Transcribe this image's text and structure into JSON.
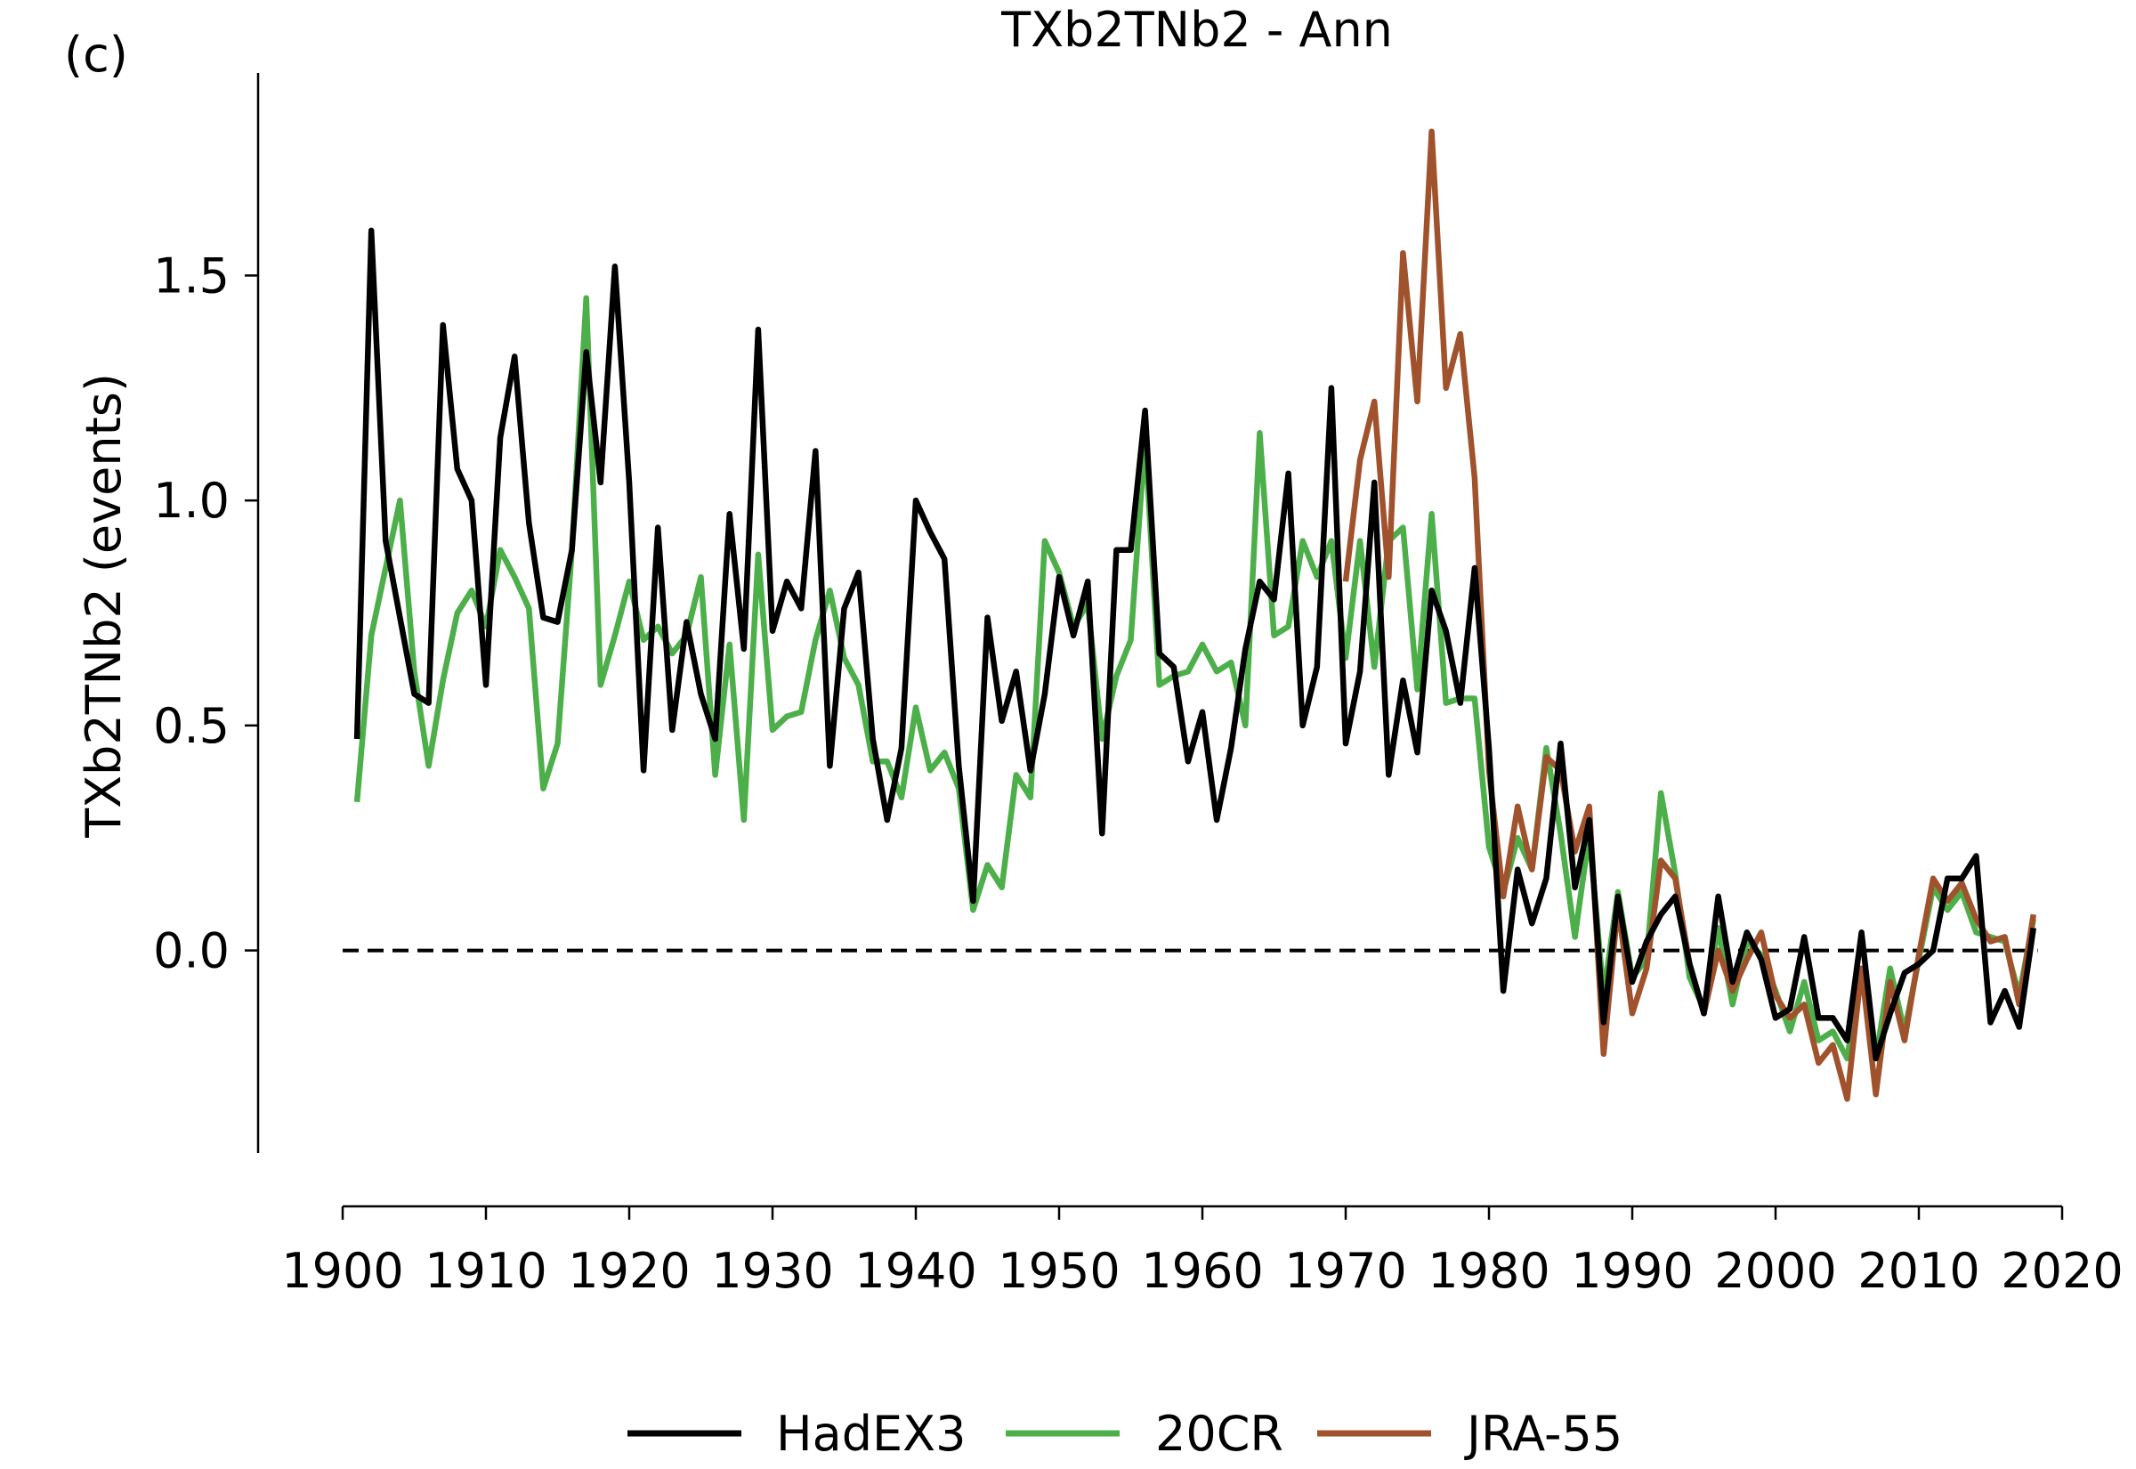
{
  "panel_label": "(c)",
  "chart_data": {
    "type": "line",
    "title": "TXb2TNb2 - Ann",
    "xlabel": "",
    "ylabel": "TXb2TNb2 (events)",
    "xlim": [
      1900,
      2020
    ],
    "ylim": [
      -0.45,
      1.95
    ],
    "xticks": [
      1900,
      1910,
      1920,
      1930,
      1940,
      1950,
      1960,
      1970,
      1980,
      1990,
      2000,
      2010,
      2020
    ],
    "xtick_labels": [
      "1900",
      "1910",
      "1920",
      "1930",
      "1940",
      "1950",
      "1960",
      "1970",
      "1980",
      "1990",
      "2000",
      "2010",
      "2020"
    ],
    "yticks": [
      0.0,
      0.5,
      1.0,
      1.5
    ],
    "ytick_labels": [
      "0.0",
      "0.5",
      "1.0",
      "1.5"
    ],
    "reference_line": {
      "y": 0.0,
      "style": "dashed",
      "color": "#000000"
    },
    "legend": {
      "position": "bottom-center"
    },
    "series": [
      {
        "name": "HadEX3",
        "color": "#000000",
        "x": [
          1901,
          1902,
          1903,
          1904,
          1905,
          1906,
          1907,
          1908,
          1909,
          1910,
          1911,
          1912,
          1913,
          1914,
          1915,
          1916,
          1917,
          1918,
          1919,
          1920,
          1921,
          1922,
          1923,
          1924,
          1925,
          1926,
          1927,
          1928,
          1929,
          1930,
          1931,
          1932,
          1933,
          1934,
          1935,
          1936,
          1937,
          1938,
          1939,
          1940,
          1941,
          1942,
          1943,
          1944,
          1945,
          1946,
          1947,
          1948,
          1949,
          1950,
          1951,
          1952,
          1953,
          1954,
          1955,
          1956,
          1957,
          1958,
          1959,
          1960,
          1961,
          1962,
          1963,
          1964,
          1965,
          1966,
          1967,
          1968,
          1969,
          1970,
          1971,
          1972,
          1973,
          1974,
          1975,
          1976,
          1977,
          1978,
          1979,
          1980,
          1981,
          1982,
          1983,
          1984,
          1985,
          1986,
          1987,
          1988,
          1989,
          1990,
          1991,
          1992,
          1993,
          1994,
          1995,
          1996,
          1997,
          1998,
          1999,
          2000,
          2001,
          2002,
          2003,
          2004,
          2005,
          2006,
          2007,
          2008,
          2009,
          2010,
          2011,
          2012,
          2013,
          2014,
          2015,
          2016,
          2017,
          2018
        ],
        "y": [
          0.47,
          1.6,
          0.91,
          0.74,
          0.57,
          0.55,
          1.39,
          1.07,
          1.0,
          0.59,
          1.14,
          1.32,
          0.95,
          0.74,
          0.73,
          0.89,
          1.33,
          1.04,
          1.52,
          1.04,
          0.4,
          0.94,
          0.49,
          0.73,
          0.57,
          0.47,
          0.97,
          0.67,
          1.38,
          0.71,
          0.82,
          0.76,
          1.11,
          0.41,
          0.76,
          0.84,
          0.47,
          0.29,
          0.45,
          1.0,
          0.93,
          0.87,
          0.41,
          0.11,
          0.74,
          0.51,
          0.62,
          0.4,
          0.57,
          0.83,
          0.7,
          0.82,
          0.26,
          0.89,
          0.89,
          1.2,
          0.66,
          0.63,
          0.42,
          0.53,
          0.29,
          0.45,
          0.67,
          0.82,
          0.78,
          1.06,
          0.5,
          0.63,
          1.25,
          0.46,
          0.62,
          1.04,
          0.39,
          0.6,
          0.44,
          0.8,
          0.71,
          0.55,
          0.85,
          0.45,
          -0.09,
          0.18,
          0.06,
          0.16,
          0.46,
          0.14,
          0.29,
          -0.16,
          0.12,
          -0.07,
          0.02,
          0.08,
          0.12,
          -0.03,
          -0.14,
          0.12,
          -0.07,
          0.04,
          -0.02,
          -0.15,
          -0.13,
          0.03,
          -0.15,
          -0.15,
          -0.2,
          0.04,
          -0.24,
          -0.14,
          -0.05,
          -0.03,
          0.0,
          0.16,
          0.16,
          0.21,
          -0.16,
          -0.09,
          -0.17,
          0.05
        ]
      },
      {
        "name": "20CR",
        "color": "#4DAF4A",
        "x": [
          1901,
          1902,
          1903,
          1904,
          1905,
          1906,
          1907,
          1908,
          1909,
          1910,
          1911,
          1912,
          1913,
          1914,
          1915,
          1916,
          1917,
          1918,
          1919,
          1920,
          1921,
          1922,
          1923,
          1924,
          1925,
          1926,
          1927,
          1928,
          1929,
          1930,
          1931,
          1932,
          1933,
          1934,
          1935,
          1936,
          1937,
          1938,
          1939,
          1940,
          1941,
          1942,
          1943,
          1944,
          1945,
          1946,
          1947,
          1948,
          1949,
          1950,
          1951,
          1952,
          1953,
          1954,
          1955,
          1956,
          1957,
          1958,
          1959,
          1960,
          1961,
          1962,
          1963,
          1964,
          1965,
          1966,
          1967,
          1968,
          1969,
          1970,
          1971,
          1972,
          1973,
          1974,
          1975,
          1976,
          1977,
          1978,
          1979,
          1980,
          1981,
          1982,
          1983,
          1984,
          1985,
          1986,
          1987,
          1988,
          1989,
          1990,
          1991,
          1992,
          1993,
          1994,
          1995,
          1996,
          1997,
          1998,
          1999,
          2000,
          2001,
          2002,
          2003,
          2004,
          2005,
          2006,
          2007,
          2008,
          2009,
          2010,
          2011,
          2012,
          2013,
          2014,
          2015,
          2016,
          2017,
          2018
        ],
        "y": [
          0.33,
          0.7,
          0.85,
          1.0,
          0.62,
          0.41,
          0.6,
          0.75,
          0.8,
          0.72,
          0.89,
          0.83,
          0.76,
          0.36,
          0.46,
          0.89,
          1.45,
          0.59,
          0.7,
          0.82,
          0.69,
          0.72,
          0.66,
          0.7,
          0.83,
          0.39,
          0.68,
          0.29,
          0.88,
          0.49,
          0.52,
          0.53,
          0.69,
          0.8,
          0.65,
          0.59,
          0.42,
          0.42,
          0.34,
          0.54,
          0.4,
          0.44,
          0.36,
          0.09,
          0.19,
          0.14,
          0.39,
          0.34,
          0.91,
          0.84,
          0.72,
          0.77,
          0.47,
          0.61,
          0.69,
          1.14,
          0.59,
          0.61,
          0.62,
          0.68,
          0.62,
          0.64,
          0.5,
          1.15,
          0.7,
          0.72,
          0.91,
          0.83,
          0.91,
          0.65,
          0.91,
          0.63,
          0.91,
          0.94,
          0.58,
          0.97,
          0.55,
          0.56,
          0.56,
          0.23,
          0.13,
          0.25,
          0.18,
          0.45,
          0.26,
          0.03,
          0.26,
          -0.1,
          0.13,
          -0.06,
          -0.02,
          0.35,
          0.17,
          -0.06,
          -0.13,
          0.05,
          -0.12,
          0.02,
          -0.01,
          -0.09,
          -0.18,
          -0.07,
          -0.2,
          -0.18,
          -0.24,
          -0.04,
          -0.24,
          -0.04,
          -0.18,
          -0.02,
          0.14,
          0.09,
          0.13,
          0.04,
          0.03,
          0.02,
          -0.1,
          0.07
        ]
      },
      {
        "name": "JRA-55",
        "color": "#A0522D",
        "x": [
          1970,
          1971,
          1972,
          1973,
          1974,
          1975,
          1976,
          1977,
          1978,
          1979,
          1980,
          1981,
          1982,
          1983,
          1984,
          1985,
          1986,
          1987,
          1988,
          1989,
          1990,
          1991,
          1992,
          1993,
          1994,
          1995,
          1996,
          1997,
          1998,
          1999,
          2000,
          2001,
          2002,
          2003,
          2004,
          2005,
          2006,
          2007,
          2008,
          2009,
          2010,
          2011,
          2012,
          2013,
          2014,
          2015,
          2016,
          2017,
          2018
        ],
        "y": [
          0.82,
          1.09,
          1.22,
          0.83,
          1.55,
          1.22,
          1.82,
          1.25,
          1.37,
          1.05,
          0.4,
          0.12,
          0.32,
          0.18,
          0.43,
          0.4,
          0.22,
          0.32,
          -0.23,
          0.1,
          -0.14,
          -0.04,
          0.2,
          0.16,
          -0.03,
          -0.14,
          0.0,
          -0.09,
          -0.02,
          0.04,
          -0.1,
          -0.15,
          -0.12,
          -0.25,
          -0.21,
          -0.33,
          -0.04,
          -0.32,
          -0.07,
          -0.2,
          -0.01,
          0.16,
          0.11,
          0.15,
          0.07,
          0.02,
          0.03,
          -0.12,
          0.08
        ]
      }
    ]
  }
}
